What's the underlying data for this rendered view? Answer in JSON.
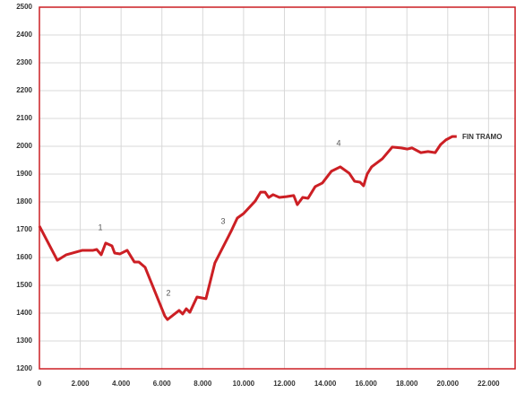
{
  "chart_data": {
    "type": "line",
    "x": [
      0,
      877,
      1316,
      2105,
      2632,
      2807,
      3026,
      3246,
      3553,
      3684,
      3947,
      4298,
      4649,
      4868,
      5175,
      6140,
      6272,
      6842,
      7018,
      7193,
      7368,
      7719,
      8158,
      8596,
      9386,
      9693,
      10000,
      10570,
      10833,
      11053,
      11228,
      11447,
      11754,
      12105,
      12456,
      12632,
      12895,
      13158,
      13509,
      13860,
      14298,
      14737,
      15175,
      15439,
      15702,
      15877,
      16053,
      16272,
      16798,
      17281,
      17719,
      18026,
      18246,
      18684,
      19035,
      19386,
      19649,
      19912,
      20219,
      20439
    ],
    "series": [
      {
        "color": "#cc1f24",
        "values": [
          1713,
          1590,
          1610,
          1626,
          1626,
          1629,
          1610,
          1652,
          1642,
          1616,
          1613,
          1626,
          1584,
          1584,
          1565,
          1390,
          1377,
          1410,
          1397,
          1416,
          1403,
          1458,
          1452,
          1581,
          1694,
          1742,
          1758,
          1803,
          1835,
          1835,
          1816,
          1826,
          1816,
          1819,
          1823,
          1790,
          1816,
          1813,
          1855,
          1868,
          1910,
          1926,
          1903,
          1874,
          1871,
          1858,
          1900,
          1926,
          1955,
          1997,
          1994,
          1990,
          1994,
          1977,
          1981,
          1977,
          2006,
          2023,
          2035,
          2035
        ]
      }
    ],
    "xlim": [
      0,
      23300
    ],
    "xticks": [
      0,
      {
        "value": 2000,
        "label": "2.000"
      },
      {
        "value": 4000,
        "label": "4.000"
      },
      {
        "value": 6000,
        "label": "6.000"
      },
      {
        "value": 8000,
        "label": "8.000"
      },
      {
        "value": 10000,
        "label": "10.000"
      },
      {
        "value": 12000,
        "label": "12.000"
      },
      {
        "value": 14000,
        "label": "14.000"
      },
      {
        "value": 16000,
        "label": "16.000"
      },
      {
        "value": 18000,
        "label": "18.000"
      },
      {
        "value": 20000,
        "label": "20.000"
      },
      {
        "value": 22000,
        "label": "22.000"
      }
    ],
    "ylim": [
      1200,
      2500
    ],
    "yticks": [
      1200,
      1300,
      1400,
      1500,
      1600,
      1700,
      1800,
      1900,
      2000,
      2100,
      2200,
      2300,
      2400,
      2500
    ],
    "grid": true,
    "annotations": [
      "1",
      "2",
      "3",
      "4",
      "FIN TRAMO"
    ]
  }
}
